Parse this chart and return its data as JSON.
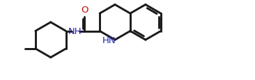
{
  "bg_color": "#ffffff",
  "bond_color": "#1a1a1a",
  "N_color": "#2222aa",
  "O_color": "#cc0000",
  "linewidth": 2.1,
  "font_size_atom": 9.5,
  "fig_width": 3.66,
  "fig_height": 1.16,
  "dpi": 100,
  "xlim": [
    0,
    10.0
  ],
  "ylim": [
    0,
    3.17
  ]
}
